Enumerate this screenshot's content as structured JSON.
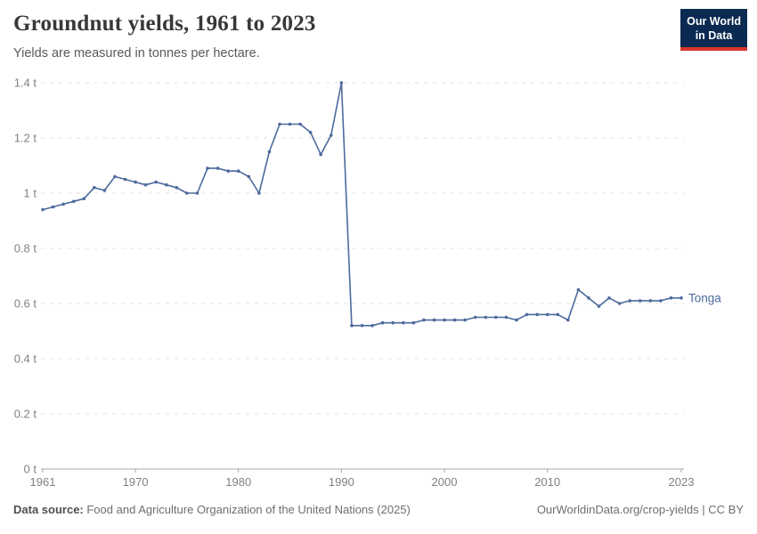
{
  "header": {
    "title": "Groundnut yields, 1961 to 2023",
    "subtitle": "Yields are measured in tonnes per hectare.",
    "logo": {
      "line1": "Our World",
      "line2": "in Data",
      "bg_color": "#0B2A51",
      "accent_color": "#D8352B"
    }
  },
  "footer": {
    "source_label": "Data source:",
    "source_text": " Food and Agriculture Organization of the United Nations (2025)",
    "link_text": "OurWorldinData.org/crop-yields",
    "separator": " | ",
    "license": "CC BY"
  },
  "chart_data": {
    "type": "line",
    "title": "Groundnut yields, 1961 to 2023",
    "subtitle": "Yields are measured in tonnes per hectare.",
    "unit": "t",
    "xlim": [
      1961,
      2023
    ],
    "ylim": [
      0,
      1.4
    ],
    "x_ticks": [
      1961,
      1970,
      1980,
      1990,
      2000,
      2010,
      2023
    ],
    "y_ticks": [
      0,
      0.2,
      0.4,
      0.6,
      0.8,
      1,
      1.2,
      1.4
    ],
    "grid": "horizontal-dashed",
    "legend_position": "end-of-line",
    "x": [
      1961,
      1962,
      1963,
      1964,
      1965,
      1966,
      1967,
      1968,
      1969,
      1970,
      1971,
      1972,
      1973,
      1974,
      1975,
      1976,
      1977,
      1978,
      1979,
      1980,
      1981,
      1982,
      1983,
      1984,
      1985,
      1986,
      1987,
      1988,
      1989,
      1990,
      1991,
      1992,
      1993,
      1994,
      1995,
      1996,
      1997,
      1998,
      1999,
      2000,
      2001,
      2002,
      2003,
      2004,
      2005,
      2006,
      2007,
      2008,
      2009,
      2010,
      2011,
      2012,
      2013,
      2014,
      2015,
      2016,
      2017,
      2018,
      2019,
      2020,
      2021,
      2022,
      2023
    ],
    "series": [
      {
        "name": "Tonga",
        "color": "#4C6A9C",
        "values": [
          0.94,
          0.95,
          0.96,
          0.97,
          0.98,
          1.02,
          1.01,
          1.06,
          1.05,
          1.04,
          1.03,
          1.04,
          1.03,
          1.02,
          1.0,
          1.0,
          1.09,
          1.09,
          1.08,
          1.08,
          1.06,
          1.0,
          1.15,
          1.25,
          1.25,
          1.25,
          1.22,
          1.14,
          1.21,
          1.4,
          0.52,
          0.52,
          0.52,
          0.53,
          0.53,
          0.53,
          0.53,
          0.54,
          0.54,
          0.54,
          0.54,
          0.54,
          0.55,
          0.55,
          0.55,
          0.55,
          0.54,
          0.56,
          0.56,
          0.56,
          0.56,
          0.54,
          0.65,
          0.62,
          0.59,
          0.62,
          0.6,
          0.61,
          0.61,
          0.61,
          0.61,
          0.62,
          0.62
        ]
      }
    ],
    "colors": {
      "grid": "#e3e3e3",
      "axis": "#a6a6a6",
      "tick_label": "#818181"
    }
  }
}
